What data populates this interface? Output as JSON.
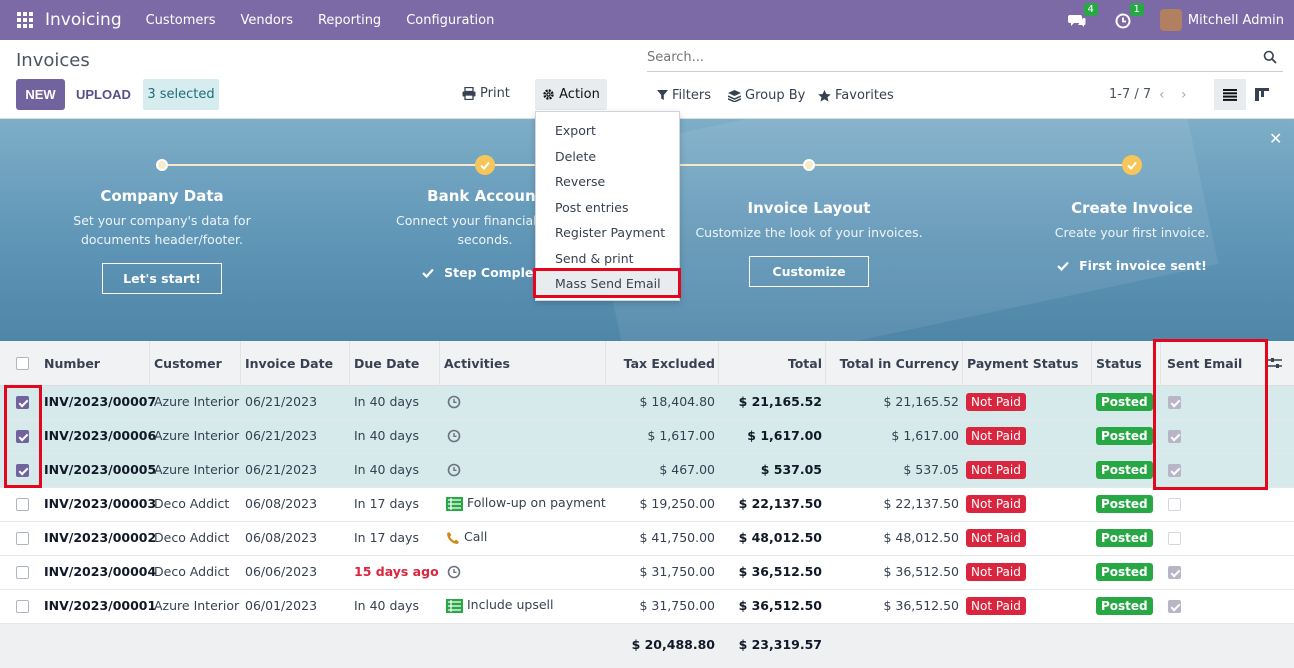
{
  "app": {
    "brand": "Invoicing",
    "menu": [
      "Customers",
      "Vendors",
      "Reporting",
      "Configuration"
    ],
    "messages_count": "4",
    "activities_count": "1",
    "user": "Mitchell Admin"
  },
  "control": {
    "title": "Invoices",
    "new_label": "NEW",
    "upload_label": "UPLOAD",
    "selected_label": "3 selected",
    "print_label": "Print",
    "action_label": "Action",
    "search_placeholder": "Search...",
    "filters_label": "Filters",
    "groupby_label": "Group By",
    "favorites_label": "Favorites",
    "pager": "1-7 / 7"
  },
  "banner": {
    "steps": [
      {
        "title": "Company Data",
        "desc": "Set your company's data for documents header/footer.",
        "button": "Let's start!"
      },
      {
        "title": "Bank Account",
        "desc": "Connect your financial acc... seconds.",
        "done": "Step Complete"
      },
      {
        "title": "Invoice Layout",
        "desc": "Customize the look of your invoices.",
        "button": "Customize"
      },
      {
        "title": "Create Invoice",
        "desc": "Create your first invoice.",
        "done": "First invoice sent!"
      }
    ]
  },
  "action_menu": {
    "items": [
      "Export",
      "Delete",
      "Reverse",
      "Post entries",
      "Register Payment",
      "Send & print",
      "Mass Send Email"
    ],
    "highlighted": "Mass Send Email"
  },
  "table": {
    "headers": {
      "number": "Number",
      "customer": "Customer",
      "invoice_date": "Invoice Date",
      "due_date": "Due Date",
      "activities": "Activities",
      "tax_excluded": "Tax Excluded",
      "total": "Total",
      "total_currency": "Total in Currency",
      "payment_status": "Payment Status",
      "status": "Status",
      "sent_email": "Sent Email"
    },
    "rows": [
      {
        "selected": true,
        "number": "INV/2023/00007",
        "customer": "Azure Interior",
        "invoice_date": "06/21/2023",
        "due_date": "In 40 days",
        "due_overdue": false,
        "activity": "",
        "activity_icon": "clock-icon",
        "tax_excluded": "$ 18,404.80",
        "total": "$ 21,165.52",
        "total_currency": "$ 21,165.52",
        "payment_status": "Not Paid",
        "status": "Posted",
        "sent_email": true
      },
      {
        "selected": true,
        "number": "INV/2023/00006",
        "customer": "Azure Interior",
        "invoice_date": "06/21/2023",
        "due_date": "In 40 days",
        "due_overdue": false,
        "activity": "",
        "activity_icon": "clock-icon",
        "tax_excluded": "$ 1,617.00",
        "total": "$ 1,617.00",
        "total_currency": "$ 1,617.00",
        "payment_status": "Not Paid",
        "status": "Posted",
        "sent_email": true
      },
      {
        "selected": true,
        "number": "INV/2023/00005",
        "customer": "Azure Interior",
        "invoice_date": "06/21/2023",
        "due_date": "In 40 days",
        "due_overdue": false,
        "activity": "",
        "activity_icon": "clock-icon",
        "tax_excluded": "$ 467.00",
        "total": "$ 537.05",
        "total_currency": "$ 537.05",
        "payment_status": "Not Paid",
        "status": "Posted",
        "sent_email": true
      },
      {
        "selected": false,
        "number": "INV/2023/00003",
        "customer": "Deco Addict",
        "invoice_date": "06/08/2023",
        "due_date": "In 17 days",
        "due_overdue": false,
        "activity": "Follow-up on payment",
        "activity_icon": "todo-list-icon",
        "tax_excluded": "$ 19,250.00",
        "total": "$ 22,137.50",
        "total_currency": "$ 22,137.50",
        "payment_status": "Not Paid",
        "status": "Posted",
        "sent_email": false
      },
      {
        "selected": false,
        "number": "INV/2023/00002",
        "customer": "Deco Addict",
        "invoice_date": "06/08/2023",
        "due_date": "In 17 days",
        "due_overdue": false,
        "activity": "Call",
        "activity_icon": "phone-icon",
        "tax_excluded": "$ 41,750.00",
        "total": "$ 48,012.50",
        "total_currency": "$ 48,012.50",
        "payment_status": "Not Paid",
        "status": "Posted",
        "sent_email": false
      },
      {
        "selected": false,
        "number": "INV/2023/00004",
        "customer": "Deco Addict",
        "invoice_date": "06/06/2023",
        "due_date": "15 days ago",
        "due_overdue": true,
        "activity": "",
        "activity_icon": "clock-icon",
        "tax_excluded": "$ 31,750.00",
        "total": "$ 36,512.50",
        "total_currency": "$ 36,512.50",
        "payment_status": "Not Paid",
        "status": "Posted",
        "sent_email": true
      },
      {
        "selected": false,
        "number": "INV/2023/00001",
        "customer": "Azure Interior",
        "invoice_date": "06/01/2023",
        "due_date": "In 40 days",
        "due_overdue": false,
        "activity": "Include upsell",
        "activity_icon": "todo-list-icon",
        "tax_excluded": "$ 31,750.00",
        "total": "$ 36,512.50",
        "total_currency": "$ 36,512.50",
        "payment_status": "Not Paid",
        "status": "Posted",
        "sent_email": true
      }
    ],
    "footer": {
      "tax_excluded": "$ 20,488.80",
      "total": "$ 23,319.57"
    }
  },
  "colors": {
    "navbar": "#7c6aa6",
    "primary": "#71639e",
    "danger": "#d9263e",
    "success": "#28a745",
    "highlight": "#e3061c"
  }
}
